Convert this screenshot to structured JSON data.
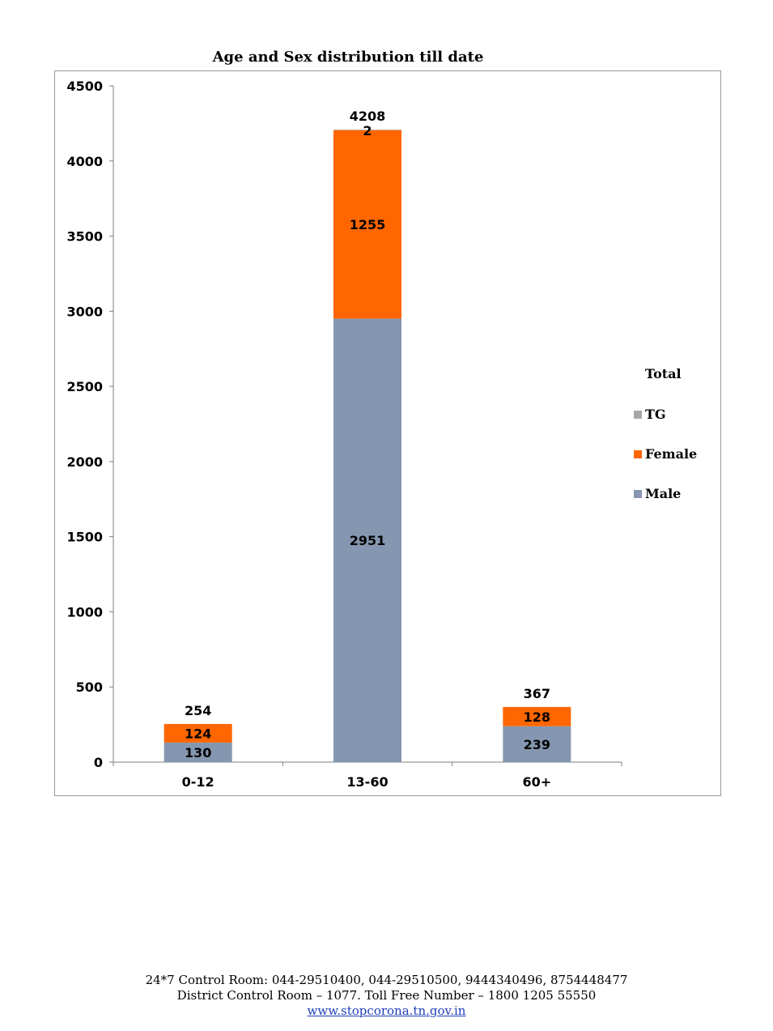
{
  "chart_data": {
    "type": "bar",
    "stacked": true,
    "title": "Age and Sex distribution till date",
    "categories": [
      "0-12",
      "13-60",
      "60+"
    ],
    "series": [
      {
        "name": "Male",
        "values": [
          130,
          2951,
          239
        ],
        "color": "#8597b0"
      },
      {
        "name": "Female",
        "values": [
          124,
          1255,
          128
        ],
        "color": "#ff6600"
      },
      {
        "name": "TG",
        "values": [
          0,
          2,
          0
        ],
        "color": "#a6a6a6"
      }
    ],
    "totals": [
      254,
      4208,
      367
    ],
    "total_legend_label": "Total",
    "ylim": [
      0,
      4500
    ],
    "yticks": [
      0,
      500,
      1000,
      1500,
      2000,
      2500,
      3000,
      3500,
      4000,
      4500
    ],
    "grid": false,
    "legend_position": "right"
  },
  "footer": {
    "line1": "24*7 Control Room: 044-29510400, 044-29510500, 9444340496, 8754448477",
    "line2": "District Control Room – 1077. Toll Free Number – 1800 1205 55550",
    "link": "www.stopcorona.tn.gov.in"
  }
}
